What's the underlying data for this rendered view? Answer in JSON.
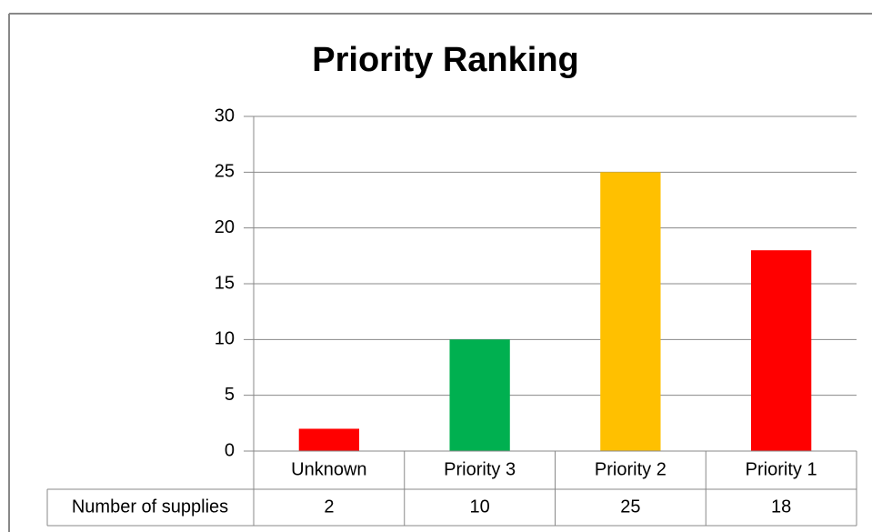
{
  "chart_data": {
    "type": "bar",
    "title": "Priority Ranking",
    "categories": [
      "Unknown",
      "Priority 3",
      "Priority 2",
      "Priority 1"
    ],
    "series": [
      {
        "name": "Number of supplies",
        "colors": [
          "#ff0000",
          "#00b050",
          "#ffc000",
          "#ff0000"
        ],
        "values": [
          2,
          10,
          25,
          18
        ]
      }
    ],
    "ylim": [
      0,
      30
    ],
    "yticks": [
      0,
      5,
      10,
      15,
      20,
      25,
      30
    ],
    "grid": true,
    "data_table": true
  }
}
